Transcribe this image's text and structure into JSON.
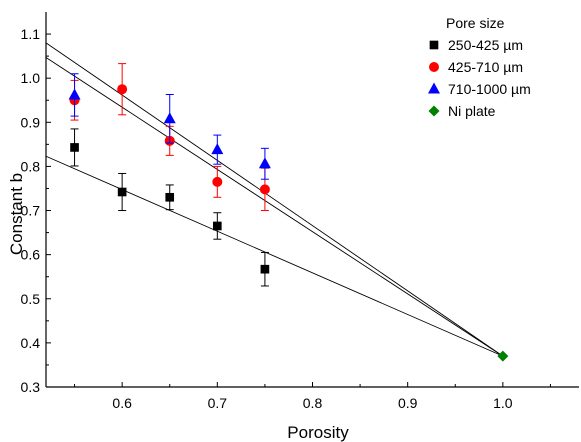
{
  "chart_data": {
    "type": "scatter",
    "xlabel": "Porosity",
    "ylabel": "Constant b",
    "xlim": [
      0.52,
      1.08
    ],
    "ylim": [
      0.3,
      1.15
    ],
    "x_ticks": [
      "0.6",
      "0.7",
      "0.8",
      "0.9",
      "1.0"
    ],
    "y_ticks": [
      "0.3",
      "0.4",
      "0.5",
      "0.6",
      "0.7",
      "0.8",
      "0.9",
      "1.0",
      "1.1"
    ],
    "x_tick_values": [
      0.6,
      0.7,
      0.8,
      0.9,
      1.0
    ],
    "y_tick_values": [
      0.3,
      0.4,
      0.5,
      0.6,
      0.7,
      0.8,
      0.9,
      1.0,
      1.1
    ],
    "legend": {
      "title": "Pore size",
      "position": "top-right"
    },
    "series": [
      {
        "name": "250-425 µm",
        "marker": "square",
        "color": "#000000",
        "x": [
          0.55,
          0.6,
          0.65,
          0.7,
          0.75
        ],
        "y": [
          0.843,
          0.742,
          0.73,
          0.665,
          0.567
        ],
        "yerr": [
          0.042,
          0.042,
          0.028,
          0.03,
          0.038
        ],
        "fit": [
          [
            0.52,
            0.823
          ],
          [
            1.0,
            0.37
          ]
        ]
      },
      {
        "name": "425-710 µm",
        "marker": "circle",
        "color": "#ff0000",
        "x": [
          0.55,
          0.6,
          0.65,
          0.7,
          0.75
        ],
        "y": [
          0.95,
          0.975,
          0.858,
          0.765,
          0.748
        ],
        "yerr": [
          0.045,
          0.058,
          0.033,
          0.035,
          0.048
        ],
        "fit": [
          [
            0.52,
            1.047
          ],
          [
            1.0,
            0.37
          ]
        ]
      },
      {
        "name": "710-1000 µm",
        "marker": "triangle",
        "color": "#0000ff",
        "x": [
          0.55,
          0.65,
          0.7,
          0.75
        ],
        "y": [
          0.962,
          0.908,
          0.838,
          0.806
        ],
        "yerr": [
          0.048,
          0.055,
          0.033,
          0.035
        ],
        "fit": [
          [
            0.52,
            1.08
          ],
          [
            1.0,
            0.37
          ]
        ]
      },
      {
        "name": "Ni plate",
        "marker": "diamond",
        "color": "#008000",
        "x": [
          1.0
        ],
        "y": [
          0.37
        ],
        "yerr": [
          0
        ]
      }
    ]
  }
}
